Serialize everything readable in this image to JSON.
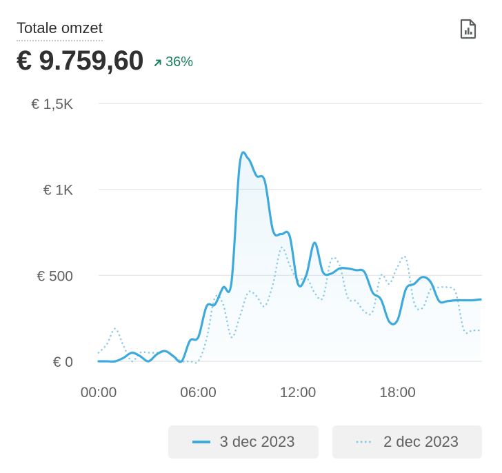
{
  "card": {
    "title": "Totale omzet",
    "value": "€ 9.759,60",
    "change": "36%",
    "change_icon": "arrow-up-right-icon",
    "export_icon": "report-chart-icon"
  },
  "colors": {
    "current": "#3da9dc",
    "previous": "#8ecbea",
    "grid": "#e4e4e4",
    "positive": "#1a7f5a"
  },
  "chart_data": {
    "type": "line",
    "title": "",
    "xlabel": "",
    "ylabel": "",
    "ylim": [
      0,
      1500
    ],
    "yticks": [
      0,
      500,
      1000,
      1500
    ],
    "ytick_labels": [
      "€ 0",
      "€ 500",
      "€ 1K",
      "€ 1,5K"
    ],
    "x_hours": [
      0,
      0.5,
      1,
      1.5,
      2,
      2.5,
      3,
      3.5,
      4,
      4.5,
      5,
      5.5,
      6,
      6.5,
      7,
      7.5,
      8,
      8.5,
      9,
      9.5,
      10,
      10.5,
      11,
      11.5,
      12,
      12.5,
      13,
      13.5,
      14,
      14.5,
      15,
      15.5,
      16,
      16.5,
      17,
      17.5,
      18,
      18.5,
      19,
      19.5,
      20,
      20.5,
      21,
      21.5,
      22,
      22.5,
      23
    ],
    "xticks": [
      0,
      6,
      12,
      18
    ],
    "xtick_labels": [
      "00:00",
      "06:00",
      "12:00",
      "18:00"
    ],
    "grid": true,
    "legend_position": "bottom",
    "series": [
      {
        "name": "3 dec 2023",
        "style": "solid",
        "values": [
          0,
          0,
          0,
          20,
          50,
          30,
          0,
          40,
          60,
          30,
          0,
          120,
          140,
          320,
          330,
          430,
          460,
          1150,
          1180,
          1080,
          1050,
          760,
          740,
          730,
          450,
          500,
          690,
          520,
          510,
          540,
          540,
          530,
          520,
          400,
          360,
          230,
          240,
          420,
          450,
          490,
          460,
          350,
          350,
          355,
          355,
          355,
          360
        ]
      },
      {
        "name": "2 dec 2023",
        "style": "dotted",
        "values": [
          50,
          100,
          190,
          90,
          0,
          50,
          50,
          50,
          60,
          30,
          0,
          0,
          0,
          130,
          370,
          330,
          140,
          260,
          400,
          380,
          320,
          450,
          660,
          560,
          470,
          490,
          400,
          370,
          590,
          560,
          370,
          350,
          290,
          290,
          500,
          450,
          550,
          600,
          340,
          310,
          420,
          430,
          430,
          400,
          180,
          180,
          180
        ]
      }
    ]
  }
}
